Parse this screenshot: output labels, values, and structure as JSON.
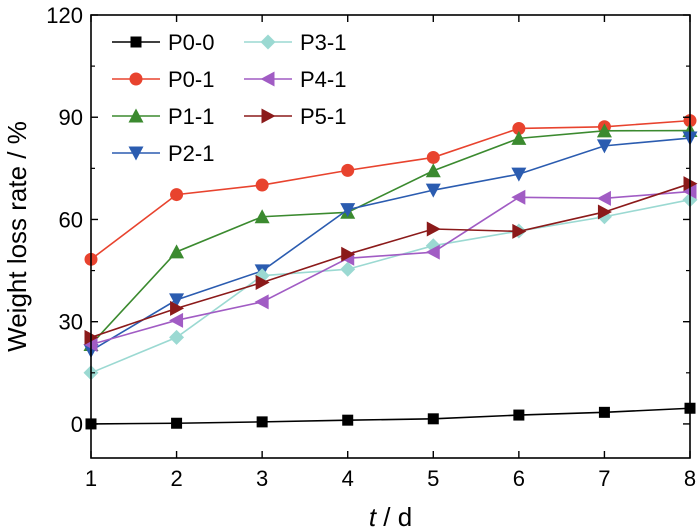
{
  "chart_data": {
    "type": "line",
    "title": "",
    "xlabel_italic": "t",
    "xlabel_rest": " / d",
    "ylabel": "Weight loss rate / %",
    "xlim": [
      1,
      8
    ],
    "ylim": [
      -10,
      120
    ],
    "x": [
      1,
      2,
      3,
      4,
      5,
      6,
      7,
      8
    ],
    "xticks": [
      "1",
      "2",
      "3",
      "4",
      "5",
      "6",
      "7",
      "8"
    ],
    "yticks": [
      0,
      30,
      60,
      90,
      120
    ],
    "ytick_labels": [
      "0",
      "30",
      "60",
      "90",
      "120"
    ],
    "grid": false,
    "legend_position": "top-left",
    "series": [
      {
        "name": "P0-0",
        "color": "#000000",
        "marker": "square",
        "values": [
          0,
          0.2,
          0.6,
          1.1,
          1.5,
          2.6,
          3.4,
          4.6
        ]
      },
      {
        "name": "P0-1",
        "color": "#e8432e",
        "marker": "circle",
        "values": [
          48.3,
          67.3,
          70.1,
          74.4,
          78.2,
          86.7,
          87.2,
          89.0
        ]
      },
      {
        "name": "P1-1",
        "color": "#3b8a2f",
        "marker": "triangle-up",
        "values": [
          23.3,
          50.5,
          60.8,
          62.1,
          74.3,
          83.8,
          86.0,
          86.1
        ]
      },
      {
        "name": "P2-1",
        "color": "#2b5cb0",
        "marker": "triangle-down",
        "values": [
          21.5,
          36.4,
          44.9,
          62.9,
          68.6,
          73.3,
          81.6,
          83.9
        ]
      },
      {
        "name": "P3-1",
        "color": "#9bd9d2",
        "marker": "diamond",
        "values": [
          15.0,
          25.4,
          43.5,
          45.4,
          52.3,
          56.6,
          60.8,
          65.8
        ]
      },
      {
        "name": "P4-1",
        "color": "#a15cc4",
        "marker": "triangle-left",
        "values": [
          23.3,
          30.4,
          35.8,
          48.6,
          50.4,
          66.5,
          66.2,
          68.2
        ]
      },
      {
        "name": "P5-1",
        "color": "#8b1a1a",
        "marker": "triangle-right",
        "values": [
          25.4,
          33.9,
          41.5,
          49.8,
          57.2,
          56.5,
          62.2,
          70.5
        ]
      }
    ]
  }
}
